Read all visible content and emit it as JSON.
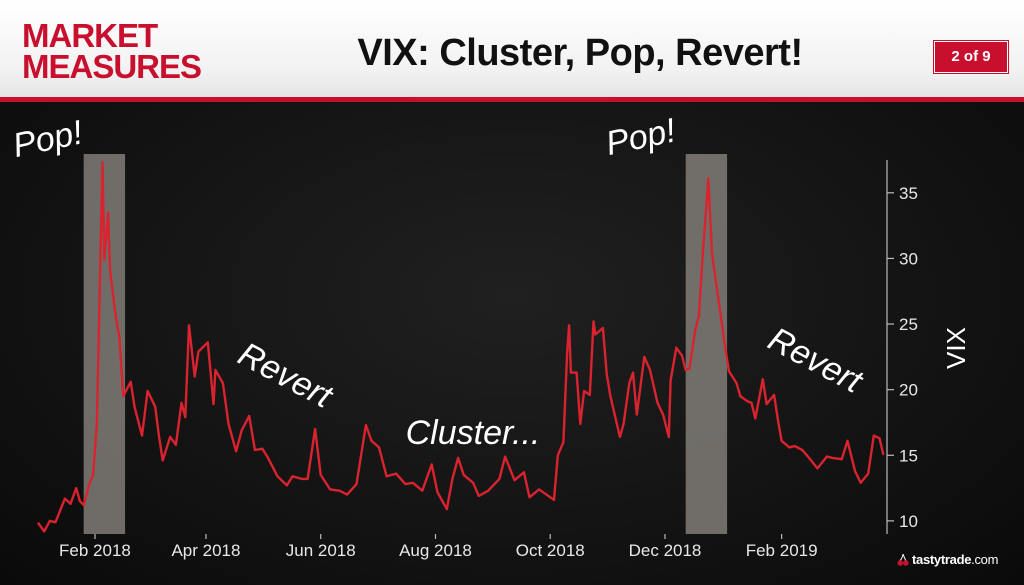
{
  "header": {
    "logo_line1": "MARKET",
    "logo_line2": "MEASURES",
    "title": "VIX: Cluster, Pop, Revert!",
    "page_indicator": "2 of 9"
  },
  "brand": {
    "name": "tastytrade",
    "suffix": ".com",
    "icon": "cherry-icon"
  },
  "colors": {
    "brand_red": "#c8102e",
    "line_red": "#d9232f",
    "highlight": "#8a8782"
  },
  "annotations": [
    {
      "text": "Pop!",
      "near": "Feb 2018"
    },
    {
      "text": "Revert",
      "near": "Apr 2018"
    },
    {
      "text": "Cluster...",
      "near": "Aug 2018"
    },
    {
      "text": "Pop!",
      "near": "Dec 2018"
    },
    {
      "text": "Revert",
      "near": "Jan 2019"
    }
  ],
  "chart_data": {
    "type": "line",
    "title": "VIX: Cluster, Pop, Revert!",
    "xlabel": "",
    "ylabel": "VIX",
    "x_ticks": [
      "Feb 2018",
      "Apr 2018",
      "Jun 2018",
      "Aug 2018",
      "Oct 2018",
      "Dec 2018",
      "Feb 2019"
    ],
    "x_tick_dates": [
      "2018-02-01",
      "2018-04-01",
      "2018-06-01",
      "2018-08-01",
      "2018-10-01",
      "2018-12-01",
      "2019-02-01"
    ],
    "y_ticks": [
      10,
      15,
      20,
      25,
      30,
      35
    ],
    "ylim": [
      9,
      37.5
    ],
    "xlim": [
      "2017-12-29",
      "2019-03-29"
    ],
    "y_axis_position": "right",
    "grid": false,
    "legend": "none",
    "highlight_ranges": [
      {
        "start": "2018-01-26",
        "end": "2018-02-17"
      },
      {
        "start": "2018-12-12",
        "end": "2019-01-03"
      }
    ],
    "series": [
      {
        "values": [
          [
            "2018-01-02",
            9.8
          ],
          [
            "2018-01-05",
            9.2
          ],
          [
            "2018-01-08",
            10.0
          ],
          [
            "2018-01-11",
            9.9
          ],
          [
            "2018-01-16",
            11.7
          ],
          [
            "2018-01-19",
            11.3
          ],
          [
            "2018-01-22",
            12.5
          ],
          [
            "2018-01-24",
            11.5
          ],
          [
            "2018-01-26",
            11.2
          ],
          [
            "2018-01-29",
            12.8
          ],
          [
            "2018-01-31",
            13.5
          ],
          [
            "2018-02-02",
            17.3
          ],
          [
            "2018-02-05",
            37.3
          ],
          [
            "2018-02-06",
            29.9
          ],
          [
            "2018-02-08",
            33.5
          ],
          [
            "2018-02-09",
            29.1
          ],
          [
            "2018-02-12",
            25.6
          ],
          [
            "2018-02-14",
            24.0
          ],
          [
            "2018-02-16",
            19.5
          ],
          [
            "2018-02-20",
            20.6
          ],
          [
            "2018-02-22",
            18.7
          ],
          [
            "2018-02-26",
            16.5
          ],
          [
            "2018-03-01",
            19.9
          ],
          [
            "2018-03-02",
            19.6
          ],
          [
            "2018-03-05",
            18.7
          ],
          [
            "2018-03-07",
            16.5
          ],
          [
            "2018-03-09",
            14.6
          ],
          [
            "2018-03-13",
            16.4
          ],
          [
            "2018-03-16",
            15.8
          ],
          [
            "2018-03-19",
            19.0
          ],
          [
            "2018-03-21",
            17.9
          ],
          [
            "2018-03-23",
            24.9
          ],
          [
            "2018-03-26",
            21.0
          ],
          [
            "2018-03-28",
            22.9
          ],
          [
            "2018-04-02",
            23.6
          ],
          [
            "2018-04-05",
            18.9
          ],
          [
            "2018-04-06",
            21.5
          ],
          [
            "2018-04-10",
            20.5
          ],
          [
            "2018-04-13",
            17.4
          ],
          [
            "2018-04-17",
            15.3
          ],
          [
            "2018-04-20",
            16.9
          ],
          [
            "2018-04-24",
            18.0
          ],
          [
            "2018-04-27",
            15.4
          ],
          [
            "2018-05-01",
            15.5
          ],
          [
            "2018-05-04",
            14.8
          ],
          [
            "2018-05-09",
            13.4
          ],
          [
            "2018-05-14",
            12.7
          ],
          [
            "2018-05-17",
            13.4
          ],
          [
            "2018-05-22",
            13.2
          ],
          [
            "2018-05-25",
            13.2
          ],
          [
            "2018-05-29",
            17.0
          ],
          [
            "2018-06-01",
            13.5
          ],
          [
            "2018-06-06",
            12.4
          ],
          [
            "2018-06-11",
            12.3
          ],
          [
            "2018-06-15",
            12.0
          ],
          [
            "2018-06-20",
            12.8
          ],
          [
            "2018-06-25",
            17.3
          ],
          [
            "2018-06-28",
            16.1
          ],
          [
            "2018-07-02",
            15.6
          ],
          [
            "2018-07-06",
            13.4
          ],
          [
            "2018-07-11",
            13.6
          ],
          [
            "2018-07-16",
            12.8
          ],
          [
            "2018-07-20",
            12.9
          ],
          [
            "2018-07-25",
            12.3
          ],
          [
            "2018-07-30",
            14.3
          ],
          [
            "2018-08-02",
            12.2
          ],
          [
            "2018-08-07",
            10.9
          ],
          [
            "2018-08-10",
            13.2
          ],
          [
            "2018-08-13",
            14.8
          ],
          [
            "2018-08-16",
            13.5
          ],
          [
            "2018-08-21",
            12.9
          ],
          [
            "2018-08-24",
            11.9
          ],
          [
            "2018-08-29",
            12.3
          ],
          [
            "2018-09-04",
            13.2
          ],
          [
            "2018-09-07",
            14.9
          ],
          [
            "2018-09-12",
            13.1
          ],
          [
            "2018-09-17",
            13.7
          ],
          [
            "2018-09-20",
            11.8
          ],
          [
            "2018-09-25",
            12.4
          ],
          [
            "2018-09-28",
            12.1
          ],
          [
            "2018-10-03",
            11.6
          ],
          [
            "2018-10-05",
            15.0
          ],
          [
            "2018-10-08",
            16.0
          ],
          [
            "2018-10-10",
            22.9
          ],
          [
            "2018-10-11",
            24.9
          ],
          [
            "2018-10-12",
            21.3
          ],
          [
            "2018-10-15",
            21.3
          ],
          [
            "2018-10-17",
            17.4
          ],
          [
            "2018-10-19",
            19.9
          ],
          [
            "2018-10-22",
            19.6
          ],
          [
            "2018-10-24",
            25.2
          ],
          [
            "2018-10-25",
            24.2
          ],
          [
            "2018-10-29",
            24.7
          ],
          [
            "2018-10-31",
            21.2
          ],
          [
            "2018-11-02",
            19.5
          ],
          [
            "2018-11-07",
            16.4
          ],
          [
            "2018-11-09",
            17.4
          ],
          [
            "2018-11-12",
            20.5
          ],
          [
            "2018-11-14",
            21.3
          ],
          [
            "2018-11-16",
            18.1
          ],
          [
            "2018-11-20",
            22.5
          ],
          [
            "2018-11-23",
            21.5
          ],
          [
            "2018-11-27",
            19.0
          ],
          [
            "2018-11-30",
            18.1
          ],
          [
            "2018-12-03",
            16.4
          ],
          [
            "2018-12-04",
            20.7
          ],
          [
            "2018-12-07",
            23.2
          ],
          [
            "2018-12-10",
            22.6
          ],
          [
            "2018-12-12",
            21.5
          ],
          [
            "2018-12-14",
            21.6
          ],
          [
            "2018-12-17",
            24.5
          ],
          [
            "2018-12-19",
            25.6
          ],
          [
            "2018-12-21",
            30.1
          ],
          [
            "2018-12-24",
            36.1
          ],
          [
            "2018-12-26",
            30.4
          ],
          [
            "2018-12-28",
            28.3
          ],
          [
            "2019-01-02",
            23.2
          ],
          [
            "2019-01-04",
            21.4
          ],
          [
            "2019-01-08",
            20.5
          ],
          [
            "2019-01-10",
            19.5
          ],
          [
            "2019-01-14",
            19.1
          ],
          [
            "2019-01-16",
            19.0
          ],
          [
            "2019-01-18",
            17.8
          ],
          [
            "2019-01-22",
            20.8
          ],
          [
            "2019-01-24",
            18.9
          ],
          [
            "2019-01-28",
            19.6
          ],
          [
            "2019-01-30",
            17.7
          ],
          [
            "2019-02-01",
            16.1
          ],
          [
            "2019-02-05",
            15.6
          ],
          [
            "2019-02-08",
            15.7
          ],
          [
            "2019-02-12",
            15.4
          ],
          [
            "2019-02-15",
            14.9
          ],
          [
            "2019-02-20",
            14.0
          ],
          [
            "2019-02-25",
            14.9
          ],
          [
            "2019-02-28",
            14.8
          ],
          [
            "2019-03-05",
            14.7
          ],
          [
            "2019-03-08",
            16.1
          ],
          [
            "2019-03-12",
            13.8
          ],
          [
            "2019-03-15",
            12.9
          ],
          [
            "2019-03-19",
            13.6
          ],
          [
            "2019-03-22",
            16.5
          ],
          [
            "2019-03-25",
            16.3
          ],
          [
            "2019-03-27",
            15.1
          ]
        ]
      }
    ]
  }
}
